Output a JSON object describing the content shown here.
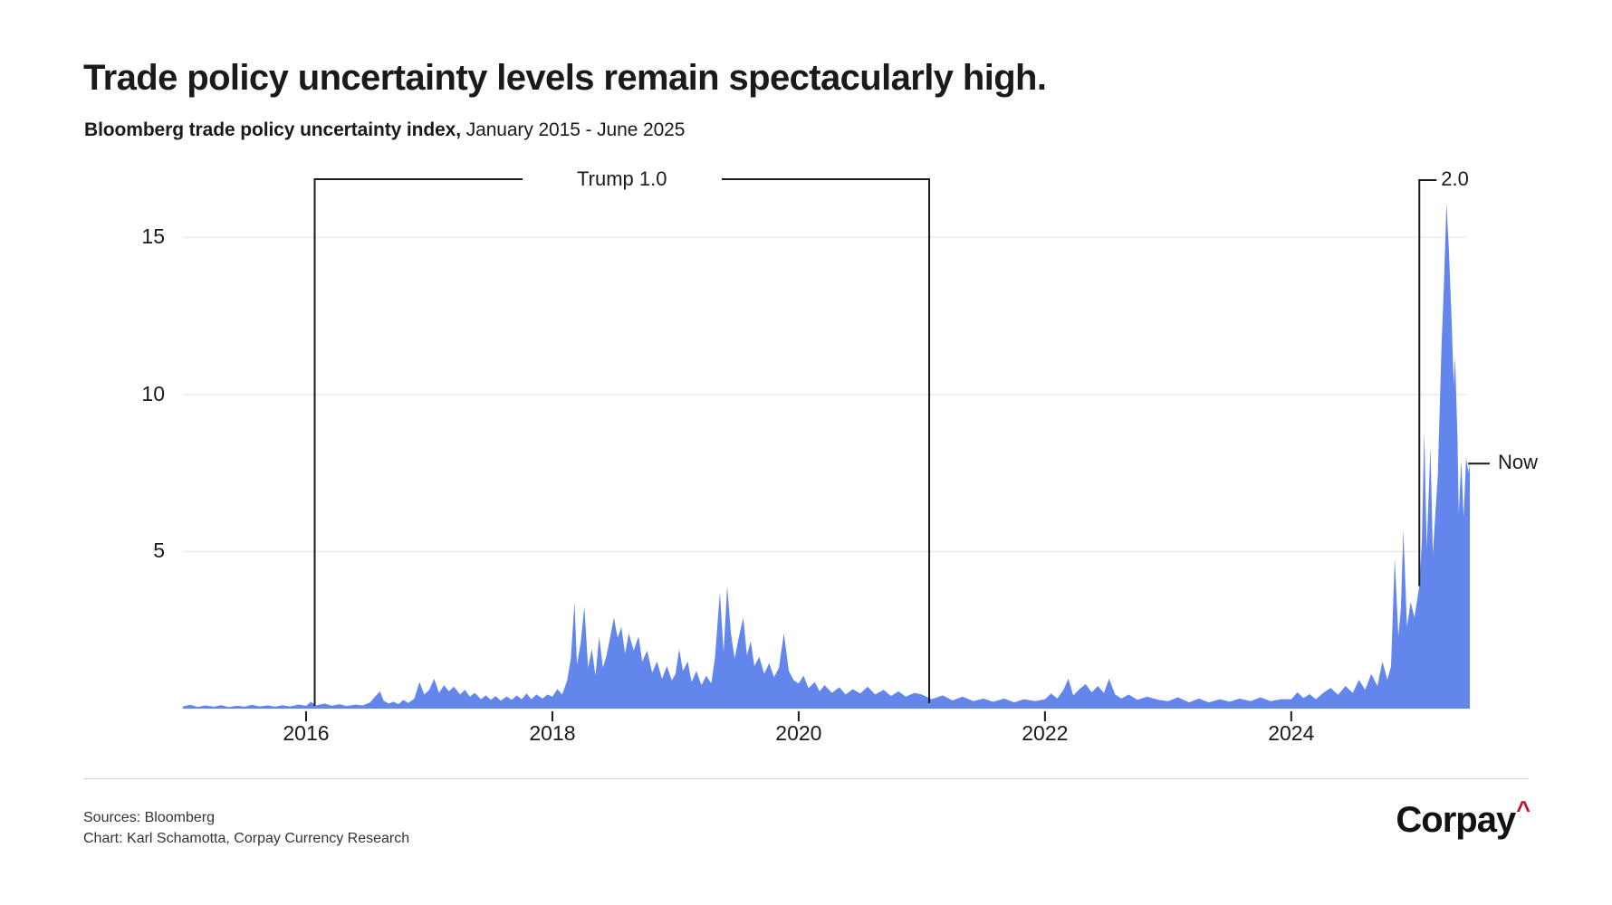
{
  "header": {
    "title": "Trade policy uncertainty levels remain spectacularly high.",
    "subtitle_bold": "Bloomberg trade policy uncertainty index,",
    "subtitle_rest": " January 2015 - June 2025"
  },
  "chart_data": {
    "type": "area",
    "title": "Trade policy uncertainty levels remain spectacularly high.",
    "subtitle": "Bloomberg trade policy uncertainty index, January 2015 - June 2025",
    "xlabel": "",
    "ylabel": "",
    "xlim": [
      2015.0,
      2025.45
    ],
    "ylim": [
      0,
      17
    ],
    "grid": "horizontal",
    "area_color": "#6286EC",
    "axis_color": "#1a1a1a",
    "gridline_color": "#ececec",
    "y_ticks": [
      {
        "value": 5,
        "label": "5"
      },
      {
        "value": 10,
        "label": "10"
      },
      {
        "value": 15,
        "label": "15"
      }
    ],
    "x_ticks": [
      {
        "value": 2016,
        "label": "2016"
      },
      {
        "value": 2018,
        "label": "2018"
      },
      {
        "value": 2020,
        "label": "2020"
      },
      {
        "value": 2022,
        "label": "2022"
      },
      {
        "value": 2024,
        "label": "2024"
      }
    ],
    "annotations": {
      "trump1": {
        "label": "Trump 1.0",
        "x_start": 2016.07,
        "x_end": 2021.06
      },
      "trump2": {
        "label": "2.0",
        "x": 2025.04,
        "line_bottom_value": 3.9
      },
      "now": {
        "label": "Now",
        "value": 7.8
      }
    },
    "series": [
      {
        "name": "Bloomberg trade policy uncertainty index",
        "points": [
          [
            2015.0,
            0.07
          ],
          [
            2015.06,
            0.12
          ],
          [
            2015.12,
            0.05
          ],
          [
            2015.18,
            0.1
          ],
          [
            2015.25,
            0.06
          ],
          [
            2015.31,
            0.11
          ],
          [
            2015.37,
            0.05
          ],
          [
            2015.44,
            0.09
          ],
          [
            2015.5,
            0.06
          ],
          [
            2015.56,
            0.12
          ],
          [
            2015.62,
            0.07
          ],
          [
            2015.69,
            0.1
          ],
          [
            2015.75,
            0.06
          ],
          [
            2015.81,
            0.11
          ],
          [
            2015.87,
            0.07
          ],
          [
            2015.94,
            0.13
          ],
          [
            2016.0,
            0.09
          ],
          [
            2016.04,
            0.22
          ],
          [
            2016.08,
            0.1
          ],
          [
            2016.15,
            0.16
          ],
          [
            2016.21,
            0.09
          ],
          [
            2016.27,
            0.14
          ],
          [
            2016.33,
            0.08
          ],
          [
            2016.4,
            0.13
          ],
          [
            2016.46,
            0.1
          ],
          [
            2016.52,
            0.2
          ],
          [
            2016.56,
            0.38
          ],
          [
            2016.6,
            0.55
          ],
          [
            2016.63,
            0.25
          ],
          [
            2016.67,
            0.16
          ],
          [
            2016.71,
            0.22
          ],
          [
            2016.75,
            0.14
          ],
          [
            2016.79,
            0.28
          ],
          [
            2016.83,
            0.18
          ],
          [
            2016.88,
            0.32
          ],
          [
            2016.92,
            0.85
          ],
          [
            2016.96,
            0.45
          ],
          [
            2017.0,
            0.6
          ],
          [
            2017.04,
            0.95
          ],
          [
            2017.08,
            0.5
          ],
          [
            2017.12,
            0.75
          ],
          [
            2017.16,
            0.55
          ],
          [
            2017.2,
            0.7
          ],
          [
            2017.25,
            0.45
          ],
          [
            2017.29,
            0.6
          ],
          [
            2017.33,
            0.38
          ],
          [
            2017.37,
            0.5
          ],
          [
            2017.42,
            0.3
          ],
          [
            2017.46,
            0.42
          ],
          [
            2017.5,
            0.28
          ],
          [
            2017.54,
            0.4
          ],
          [
            2017.58,
            0.25
          ],
          [
            2017.63,
            0.38
          ],
          [
            2017.67,
            0.28
          ],
          [
            2017.71,
            0.42
          ],
          [
            2017.75,
            0.3
          ],
          [
            2017.79,
            0.48
          ],
          [
            2017.83,
            0.3
          ],
          [
            2017.87,
            0.45
          ],
          [
            2017.92,
            0.32
          ],
          [
            2017.96,
            0.45
          ],
          [
            2018.0,
            0.38
          ],
          [
            2018.04,
            0.62
          ],
          [
            2018.08,
            0.45
          ],
          [
            2018.12,
            0.9
          ],
          [
            2018.15,
            1.6
          ],
          [
            2018.18,
            3.4
          ],
          [
            2018.2,
            1.4
          ],
          [
            2018.23,
            2.1
          ],
          [
            2018.26,
            3.25
          ],
          [
            2018.29,
            1.3
          ],
          [
            2018.32,
            1.9
          ],
          [
            2018.35,
            1.05
          ],
          [
            2018.38,
            2.3
          ],
          [
            2018.41,
            1.3
          ],
          [
            2018.44,
            1.7
          ],
          [
            2018.47,
            2.3
          ],
          [
            2018.5,
            2.9
          ],
          [
            2018.53,
            2.25
          ],
          [
            2018.56,
            2.6
          ],
          [
            2018.59,
            1.75
          ],
          [
            2018.62,
            2.4
          ],
          [
            2018.66,
            1.85
          ],
          [
            2018.7,
            2.3
          ],
          [
            2018.73,
            1.5
          ],
          [
            2018.77,
            1.85
          ],
          [
            2018.81,
            1.15
          ],
          [
            2018.85,
            1.5
          ],
          [
            2018.89,
            0.95
          ],
          [
            2018.93,
            1.35
          ],
          [
            2018.97,
            0.9
          ],
          [
            2019.0,
            1.1
          ],
          [
            2019.03,
            1.9
          ],
          [
            2019.06,
            1.2
          ],
          [
            2019.1,
            1.5
          ],
          [
            2019.13,
            0.85
          ],
          [
            2019.17,
            1.2
          ],
          [
            2019.21,
            0.75
          ],
          [
            2019.25,
            1.05
          ],
          [
            2019.29,
            0.8
          ],
          [
            2019.32,
            1.6
          ],
          [
            2019.36,
            3.7
          ],
          [
            2019.39,
            1.8
          ],
          [
            2019.42,
            3.9
          ],
          [
            2019.45,
            2.4
          ],
          [
            2019.48,
            1.6
          ],
          [
            2019.51,
            2.2
          ],
          [
            2019.55,
            2.9
          ],
          [
            2019.58,
            1.7
          ],
          [
            2019.61,
            2.15
          ],
          [
            2019.64,
            1.35
          ],
          [
            2019.68,
            1.65
          ],
          [
            2019.72,
            1.1
          ],
          [
            2019.76,
            1.45
          ],
          [
            2019.8,
            1.0
          ],
          [
            2019.84,
            1.3
          ],
          [
            2019.88,
            2.4
          ],
          [
            2019.92,
            1.2
          ],
          [
            2019.96,
            0.9
          ],
          [
            2020.0,
            0.8
          ],
          [
            2020.04,
            1.05
          ],
          [
            2020.08,
            0.65
          ],
          [
            2020.13,
            0.85
          ],
          [
            2020.17,
            0.55
          ],
          [
            2020.21,
            0.75
          ],
          [
            2020.27,
            0.5
          ],
          [
            2020.33,
            0.68
          ],
          [
            2020.38,
            0.45
          ],
          [
            2020.44,
            0.62
          ],
          [
            2020.5,
            0.48
          ],
          [
            2020.56,
            0.7
          ],
          [
            2020.62,
            0.45
          ],
          [
            2020.69,
            0.6
          ],
          [
            2020.75,
            0.4
          ],
          [
            2020.81,
            0.55
          ],
          [
            2020.87,
            0.38
          ],
          [
            2020.94,
            0.5
          ],
          [
            2021.0,
            0.45
          ],
          [
            2021.08,
            0.3
          ],
          [
            2021.17,
            0.42
          ],
          [
            2021.25,
            0.26
          ],
          [
            2021.33,
            0.38
          ],
          [
            2021.42,
            0.24
          ],
          [
            2021.5,
            0.32
          ],
          [
            2021.58,
            0.22
          ],
          [
            2021.67,
            0.32
          ],
          [
            2021.75,
            0.2
          ],
          [
            2021.83,
            0.3
          ],
          [
            2021.92,
            0.24
          ],
          [
            2022.0,
            0.3
          ],
          [
            2022.05,
            0.48
          ],
          [
            2022.1,
            0.32
          ],
          [
            2022.15,
            0.6
          ],
          [
            2022.19,
            0.95
          ],
          [
            2022.23,
            0.42
          ],
          [
            2022.28,
            0.62
          ],
          [
            2022.33,
            0.78
          ],
          [
            2022.38,
            0.52
          ],
          [
            2022.43,
            0.72
          ],
          [
            2022.48,
            0.5
          ],
          [
            2022.52,
            0.95
          ],
          [
            2022.57,
            0.45
          ],
          [
            2022.62,
            0.32
          ],
          [
            2022.68,
            0.45
          ],
          [
            2022.75,
            0.28
          ],
          [
            2022.83,
            0.38
          ],
          [
            2022.92,
            0.28
          ],
          [
            2023.0,
            0.24
          ],
          [
            2023.08,
            0.36
          ],
          [
            2023.17,
            0.2
          ],
          [
            2023.25,
            0.32
          ],
          [
            2023.33,
            0.2
          ],
          [
            2023.42,
            0.3
          ],
          [
            2023.5,
            0.22
          ],
          [
            2023.58,
            0.32
          ],
          [
            2023.67,
            0.24
          ],
          [
            2023.75,
            0.36
          ],
          [
            2023.83,
            0.24
          ],
          [
            2023.92,
            0.3
          ],
          [
            2024.0,
            0.3
          ],
          [
            2024.05,
            0.52
          ],
          [
            2024.1,
            0.34
          ],
          [
            2024.15,
            0.46
          ],
          [
            2024.2,
            0.3
          ],
          [
            2024.26,
            0.5
          ],
          [
            2024.32,
            0.66
          ],
          [
            2024.38,
            0.44
          ],
          [
            2024.44,
            0.72
          ],
          [
            2024.5,
            0.5
          ],
          [
            2024.55,
            0.92
          ],
          [
            2024.6,
            0.6
          ],
          [
            2024.65,
            1.1
          ],
          [
            2024.7,
            0.72
          ],
          [
            2024.74,
            1.5
          ],
          [
            2024.78,
            0.92
          ],
          [
            2024.81,
            1.35
          ],
          [
            2024.84,
            4.8
          ],
          [
            2024.87,
            2.3
          ],
          [
            2024.89,
            3.2
          ],
          [
            2024.91,
            5.7
          ],
          [
            2024.94,
            2.6
          ],
          [
            2024.97,
            3.4
          ],
          [
            2025.0,
            2.9
          ],
          [
            2025.02,
            3.4
          ],
          [
            2025.04,
            3.9
          ],
          [
            2025.06,
            5.3
          ],
          [
            2025.08,
            8.85
          ],
          [
            2025.1,
            5.1
          ],
          [
            2025.13,
            8.35
          ],
          [
            2025.15,
            4.9
          ],
          [
            2025.17,
            6.2
          ],
          [
            2025.19,
            7.4
          ],
          [
            2025.22,
            11.5
          ],
          [
            2025.24,
            13.5
          ],
          [
            2025.26,
            16.1
          ],
          [
            2025.28,
            14.6
          ],
          [
            2025.3,
            12.6
          ],
          [
            2025.32,
            10.3
          ],
          [
            2025.33,
            11.2
          ],
          [
            2025.35,
            8.6
          ],
          [
            2025.36,
            6.2
          ],
          [
            2025.38,
            7.9
          ],
          [
            2025.4,
            6.1
          ],
          [
            2025.42,
            8.0
          ],
          [
            2025.44,
            7.5
          ],
          [
            2025.45,
            7.8
          ]
        ]
      }
    ]
  },
  "footer": {
    "sources": "Sources: Bloomberg",
    "credit": "Chart: Karl Schamotta, Corpay Currency Research",
    "logo_text": "Corpay",
    "logo_caret": "^",
    "logo_caret_color": "#C8102E"
  }
}
